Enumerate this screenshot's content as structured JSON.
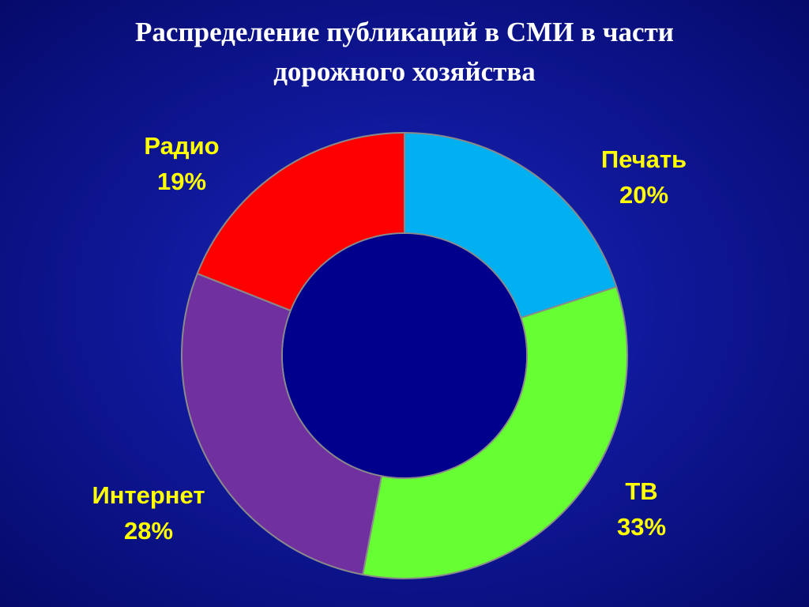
{
  "chart_data": {
    "type": "donut",
    "title": "Распределение публикаций в СМИ в части дорожного хозяйства",
    "categories": [
      "Печать",
      "ТВ",
      "Интернет",
      "Радио"
    ],
    "values": [
      20,
      33,
      28,
      19
    ],
    "value_labels": [
      "20%",
      "33%",
      "28%",
      "19%"
    ],
    "colors": [
      "#00b0f0",
      "#66ff33",
      "#7030a0",
      "#ff0000"
    ]
  }
}
